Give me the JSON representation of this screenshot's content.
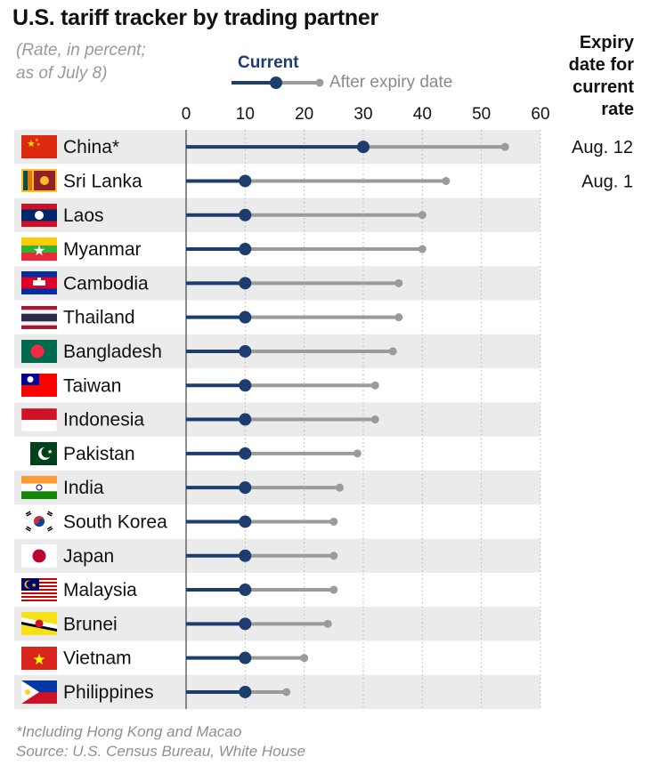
{
  "header": {
    "title": "U.S. tariff tracker by trading partner",
    "subtitle_line1": "(Rate, in percent;",
    "subtitle_line2": "as of July 8)",
    "expiry_line1": "Expiry",
    "expiry_line2": "date for",
    "expiry_line3": "current",
    "expiry_line4": "rate"
  },
  "legend": {
    "current_label": "Current",
    "after_label": "After expiry date"
  },
  "footer": {
    "note": "*Including Hong Kong and Macao",
    "source": "Source: U.S. Census Bureau, White House"
  },
  "colors": {
    "current": "#1c3d6e",
    "after": "#9b9b9b",
    "row_shade": "#ebebeb",
    "grid": "#b5b5b5"
  },
  "chart_data": {
    "type": "dot-range",
    "title": "U.S. tariff tracker by trading partner",
    "xlabel": "Rate, in percent",
    "xlim": [
      0,
      60
    ],
    "xticks": [
      0,
      10,
      20,
      30,
      40,
      50,
      60
    ],
    "series": [
      {
        "name": "Current",
        "values": [
          30,
          10,
          10,
          10,
          10,
          10,
          10,
          10,
          10,
          10,
          10,
          10,
          10,
          10,
          10,
          10,
          10
        ]
      },
      {
        "name": "After expiry date",
        "values": [
          54,
          44,
          40,
          40,
          36,
          36,
          35,
          32,
          32,
          29,
          26,
          25,
          25,
          25,
          24,
          20,
          17
        ]
      }
    ],
    "categories": [
      "China*",
      "Sri Lanka",
      "Laos",
      "Myanmar",
      "Cambodia",
      "Thailand",
      "Bangladesh",
      "Taiwan",
      "Indonesia",
      "Pakistan",
      "India",
      "South Korea",
      "Japan",
      "Malaysia",
      "Brunei",
      "Vietnam",
      "Philippines"
    ],
    "flags": [
      "china-flag-icon",
      "sri-lanka-flag-icon",
      "laos-flag-icon",
      "myanmar-flag-icon",
      "cambodia-flag-icon",
      "thailand-flag-icon",
      "bangladesh-flag-icon",
      "taiwan-flag-icon",
      "indonesia-flag-icon",
      "pakistan-flag-icon",
      "india-flag-icon",
      "south-korea-flag-icon",
      "japan-flag-icon",
      "malaysia-flag-icon",
      "brunei-flag-icon",
      "vietnam-flag-icon",
      "philippines-flag-icon"
    ],
    "expiry_dates": [
      "Aug. 12",
      "Aug. 1",
      "",
      "",
      "",
      "",
      "",
      "",
      "",
      "",
      "",
      "",
      "",
      "",
      "",
      "",
      ""
    ]
  }
}
